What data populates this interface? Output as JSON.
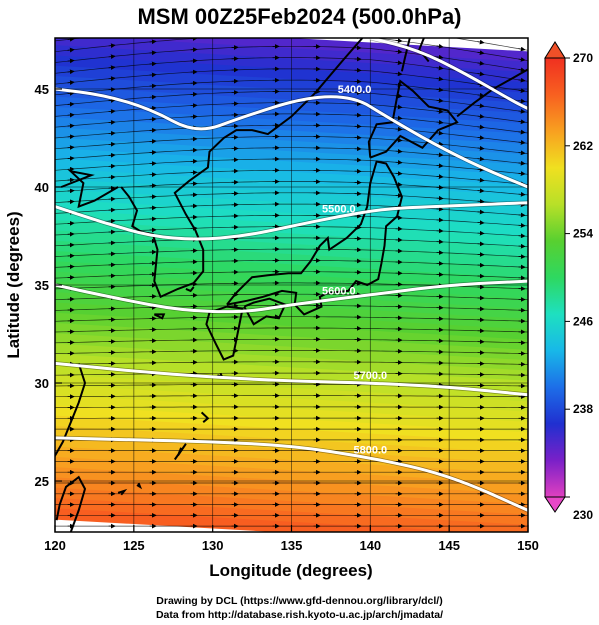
{
  "title": "MSM 00Z25Feb2024 (500.0hPa)",
  "x_axis": {
    "label": "Longitude (degrees)",
    "range": [
      120,
      150
    ],
    "ticks": [
      "120",
      "125",
      "130",
      "135",
      "140",
      "145",
      "150"
    ]
  },
  "y_axis": {
    "label": "Latitude  (degrees)",
    "range": [
      22.4,
      47.6
    ],
    "ticks": [
      "25",
      "30",
      "35",
      "40",
      "45"
    ]
  },
  "colorbar": {
    "range": [
      230,
      270
    ],
    "ticks": [
      "230",
      "238",
      "246",
      "254",
      "262",
      "270"
    ],
    "colors": [
      "#e040c0",
      "#7a20c8",
      "#2030d0",
      "#1d6ee8",
      "#18b8e8",
      "#1ee0c0",
      "#2ed860",
      "#58d030",
      "#b8e028",
      "#f0e020",
      "#f8a020",
      "#f86020",
      "#f03020"
    ]
  },
  "contours": [
    {
      "label": "5400.0",
      "lat_at": [
        [
          120,
          45.0
        ],
        [
          123,
          44.7
        ],
        [
          126,
          44.0
        ],
        [
          129,
          42.7
        ],
        [
          132,
          43.6
        ],
        [
          136,
          44.6
        ],
        [
          139,
          44.6
        ],
        [
          141,
          43.6
        ],
        [
          144,
          42.2
        ],
        [
          147,
          41.0
        ],
        [
          150,
          40.0
        ]
      ]
    },
    {
      "label": "5500.0",
      "lat_at": [
        [
          120,
          39.0
        ],
        [
          123,
          38.2
        ],
        [
          126,
          37.5
        ],
        [
          129,
          37.3
        ],
        [
          132,
          37.5
        ],
        [
          135,
          38.0
        ],
        [
          138,
          38.5
        ],
        [
          141,
          38.9
        ],
        [
          144,
          39.0
        ],
        [
          147,
          39.1
        ],
        [
          150,
          39.2
        ]
      ]
    },
    {
      "label": "5600.0",
      "lat_at": [
        [
          120,
          35.0
        ],
        [
          124,
          34.3
        ],
        [
          128,
          33.7
        ],
        [
          132,
          33.6
        ],
        [
          135,
          34.0
        ],
        [
          138,
          34.3
        ],
        [
          141,
          34.6
        ],
        [
          145,
          35.0
        ],
        [
          150,
          35.2
        ]
      ]
    },
    {
      "label": "5700.0",
      "lat_at": [
        [
          120,
          31.0
        ],
        [
          125,
          30.6
        ],
        [
          130,
          30.3
        ],
        [
          135,
          30.1
        ],
        [
          140,
          30.0
        ],
        [
          145,
          29.8
        ],
        [
          150,
          29.4
        ]
      ]
    },
    {
      "label": "5800.0",
      "lat_at": [
        [
          120,
          27.2
        ],
        [
          125,
          27.1
        ],
        [
          130,
          27.0
        ],
        [
          135,
          26.8
        ],
        [
          140,
          26.2
        ],
        [
          145,
          25.3
        ],
        [
          150,
          23.5
        ]
      ]
    },
    {
      "label": "",
      "lat_at": [
        [
          140,
          47.6
        ],
        [
          143,
          47.0
        ],
        [
          146,
          45.8
        ],
        [
          149,
          44.4
        ],
        [
          150,
          44.0
        ]
      ]
    }
  ],
  "credits": {
    "line1": "Drawing by DCL (https://www.gfd-dennou.org/library/dcl/)",
    "line2": "Data from http://database.rish.kyoto-u.ac.jp/arch/jmadata/"
  }
}
